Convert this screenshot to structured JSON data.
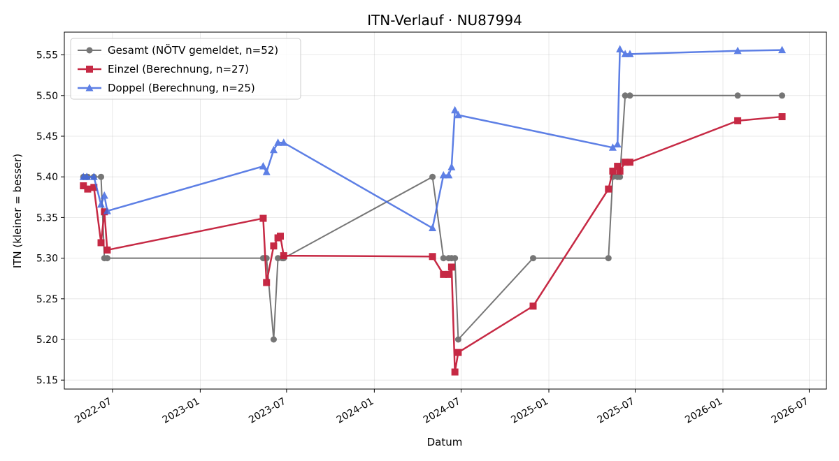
{
  "chart_data": {
    "type": "line",
    "title": "ITN-Verlauf · NU87994",
    "xlabel": "Datum",
    "ylabel": "ITN  (kleiner = besser)",
    "xlim": [
      "2022-03-22",
      "2026-08-06"
    ],
    "ylim": [
      5.139,
      5.578
    ],
    "grid": true,
    "legend_position": "top-left",
    "x_ticks": [
      "2022-07",
      "2023-01",
      "2023-07",
      "2024-01",
      "2024-07",
      "2025-01",
      "2025-07",
      "2026-01",
      "2026-07"
    ],
    "y_ticks": [
      "5.15",
      "5.20",
      "5.25",
      "5.30",
      "5.35",
      "5.40",
      "5.45",
      "5.50",
      "5.55"
    ],
    "series": [
      {
        "name": "Gesamt (NÖTV gemeldet, n=52)",
        "color": "#555555",
        "marker": "circle",
        "points": [
          [
            "2022-05-01",
            5.4
          ],
          [
            "2022-05-08",
            5.4
          ],
          [
            "2022-05-10",
            5.4
          ],
          [
            "2022-05-23",
            5.4
          ],
          [
            "2022-06-07",
            5.4
          ],
          [
            "2022-06-14",
            5.3
          ],
          [
            "2022-06-20",
            5.3
          ],
          [
            "2023-05-13",
            5.3
          ],
          [
            "2023-05-20",
            5.3
          ],
          [
            "2023-06-04",
            5.2
          ],
          [
            "2023-06-13",
            5.3
          ],
          [
            "2023-06-22",
            5.3
          ],
          [
            "2023-06-25",
            5.3
          ],
          [
            "2024-05-02",
            5.4
          ],
          [
            "2024-05-25",
            5.3
          ],
          [
            "2024-06-05",
            5.3
          ],
          [
            "2024-06-11",
            5.3
          ],
          [
            "2024-06-18",
            5.3
          ],
          [
            "2024-06-25",
            5.2
          ],
          [
            "2024-11-29",
            5.3
          ],
          [
            "2025-05-06",
            5.3
          ],
          [
            "2025-05-15",
            5.4
          ],
          [
            "2025-05-25",
            5.4
          ],
          [
            "2025-05-30",
            5.4
          ],
          [
            "2025-06-10",
            5.5
          ],
          [
            "2025-06-20",
            5.5
          ],
          [
            "2026-02-01",
            5.5
          ],
          [
            "2026-05-05",
            5.5
          ]
        ]
      },
      {
        "name": "Einzel (Berechnung, n=27)",
        "color": "#c41e3a",
        "marker": "square",
        "points": [
          [
            "2022-05-01",
            5.389
          ],
          [
            "2022-05-10",
            5.385
          ],
          [
            "2022-05-23",
            5.387
          ],
          [
            "2022-06-07",
            5.319
          ],
          [
            "2022-06-14",
            5.357
          ],
          [
            "2022-06-20",
            5.31
          ],
          [
            "2023-05-13",
            5.349
          ],
          [
            "2023-05-20",
            5.27
          ],
          [
            "2023-06-04",
            5.315
          ],
          [
            "2023-06-13",
            5.325
          ],
          [
            "2023-06-18",
            5.327
          ],
          [
            "2023-06-25",
            5.303
          ],
          [
            "2024-05-02",
            5.302
          ],
          [
            "2024-05-25",
            5.28
          ],
          [
            "2024-06-05",
            5.28
          ],
          [
            "2024-06-11",
            5.289
          ],
          [
            "2024-06-18",
            5.16
          ],
          [
            "2024-06-25",
            5.184
          ],
          [
            "2024-11-29",
            5.241
          ],
          [
            "2025-05-06",
            5.385
          ],
          [
            "2025-05-15",
            5.407
          ],
          [
            "2025-05-25",
            5.413
          ],
          [
            "2025-05-30",
            5.407
          ],
          [
            "2025-06-10",
            5.418
          ],
          [
            "2025-06-20",
            5.418
          ],
          [
            "2026-02-01",
            5.469
          ],
          [
            "2026-05-05",
            5.474
          ]
        ]
      },
      {
        "name": "Doppel (Berechnung, n=25)",
        "color": "#4169e1",
        "marker": "triangle",
        "points": [
          [
            "2022-05-01",
            5.4
          ],
          [
            "2022-05-08",
            5.4
          ],
          [
            "2022-05-23",
            5.4
          ],
          [
            "2022-06-07",
            5.366
          ],
          [
            "2022-06-14",
            5.377
          ],
          [
            "2022-06-20",
            5.358
          ],
          [
            "2023-05-13",
            5.413
          ],
          [
            "2023-05-20",
            5.406
          ],
          [
            "2023-06-04",
            5.433
          ],
          [
            "2023-06-13",
            5.442
          ],
          [
            "2023-06-25",
            5.442
          ],
          [
            "2024-05-02",
            5.337
          ],
          [
            "2024-05-25",
            5.402
          ],
          [
            "2024-06-05",
            5.402
          ],
          [
            "2024-06-11",
            5.412
          ],
          [
            "2024-06-18",
            5.482
          ],
          [
            "2024-06-25",
            5.476
          ],
          [
            "2025-05-15",
            5.436
          ],
          [
            "2025-05-25",
            5.44
          ],
          [
            "2025-05-30",
            5.557
          ],
          [
            "2025-06-10",
            5.551
          ],
          [
            "2025-06-20",
            5.551
          ],
          [
            "2026-02-01",
            5.555
          ],
          [
            "2026-05-05",
            5.556
          ]
        ]
      }
    ]
  }
}
